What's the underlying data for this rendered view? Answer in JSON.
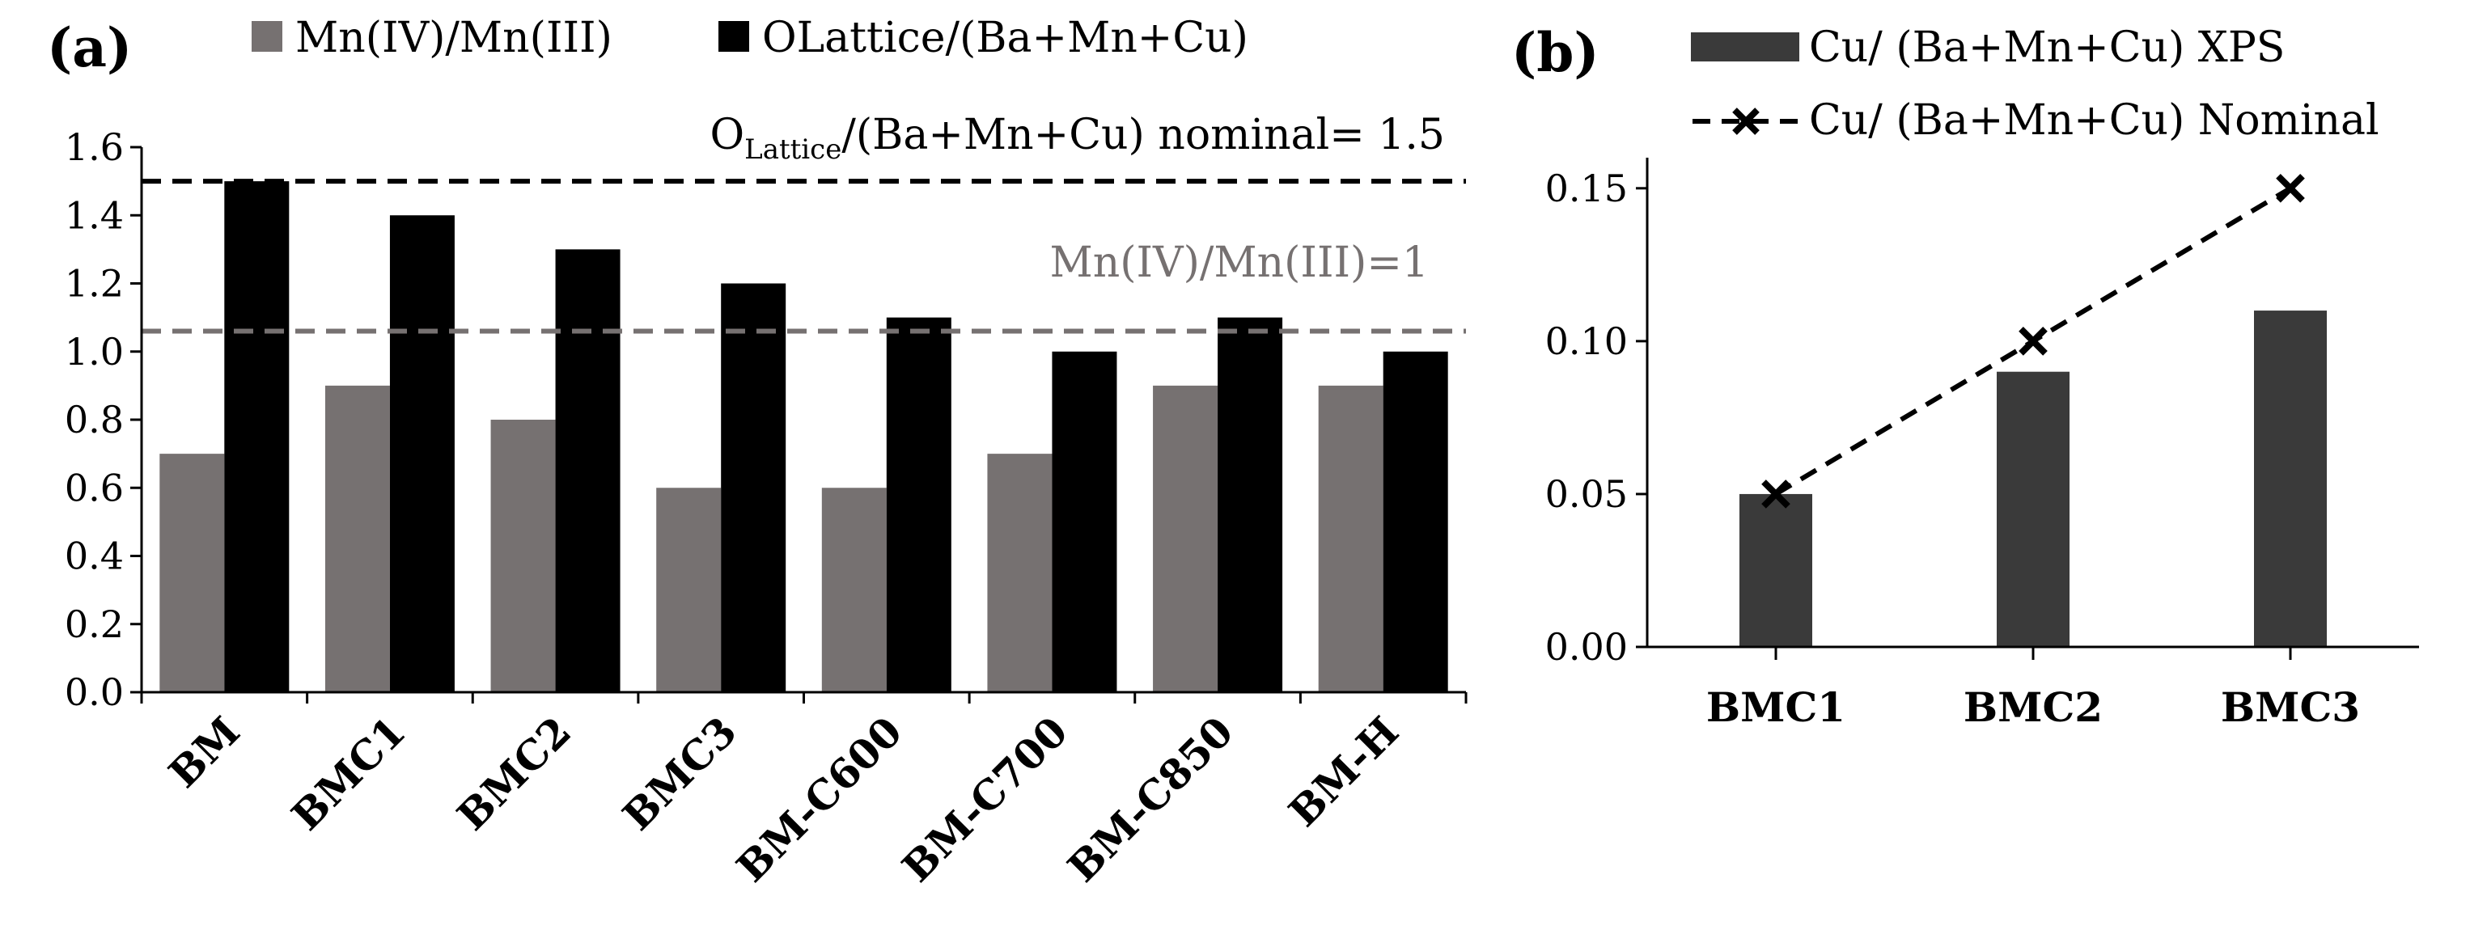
{
  "chart_data": [
    {
      "panel_label": "(a)",
      "type": "bar",
      "categories": [
        "BM",
        "BMC1",
        "BMC2",
        "BMC3",
        "BM-C600",
        "BM-C700",
        "BM-C850",
        "BM-H"
      ],
      "series": [
        {
          "name": "Mn(IV)/Mn(III)",
          "color": "#767171",
          "values": [
            0.7,
            0.9,
            0.8,
            0.6,
            0.6,
            0.7,
            0.9,
            0.9
          ]
        },
        {
          "name": "OLattice/(Ba+Mn+Cu)",
          "color": "#000000",
          "values": [
            1.5,
            1.4,
            1.3,
            1.2,
            1.1,
            1.0,
            1.1,
            1.0
          ]
        }
      ],
      "ylim": [
        0,
        1.6
      ],
      "yticks": [
        "0.0",
        "0.2",
        "0.4",
        "0.6",
        "0.8",
        "1.0",
        "1.2",
        "1.4",
        "1.6"
      ],
      "reference_lines": [
        {
          "value": 1.5,
          "color": "#000000",
          "label_main": "O",
          "label_sub": "Lattice",
          "label_rest": "/(Ba+Mn+Cu) nominal= 1.5"
        },
        {
          "value": 1.06,
          "color": "#767171",
          "label": "Mn(IV)/Mn(III)=1"
        }
      ]
    },
    {
      "panel_label": "(b)",
      "type": "bar+line",
      "categories": [
        "BMC1",
        "BMC2",
        "BMC3"
      ],
      "series": [
        {
          "name": "Cu/ (Ba+Mn+Cu) XPS",
          "kind": "bar",
          "color": "#3a3a3a",
          "values": [
            0.05,
            0.09,
            0.11
          ]
        },
        {
          "name": "Cu/ (Ba+Mn+Cu) Nominal",
          "kind": "dashed-line-x-marker",
          "color": "#000000",
          "values": [
            0.05,
            0.1,
            0.15
          ]
        }
      ],
      "ylim": [
        0,
        0.16
      ],
      "yticks": [
        "0.00",
        "0.05",
        "0.10",
        "0.15"
      ]
    }
  ]
}
